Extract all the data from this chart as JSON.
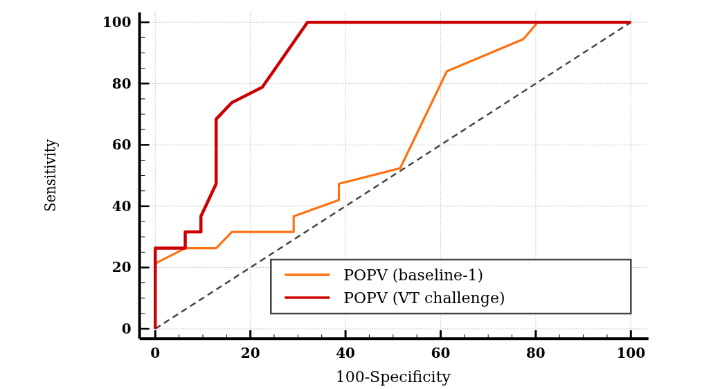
{
  "chart_data": {
    "type": "line",
    "xlabel": "100-Specificity",
    "ylabel": "Sensitivity",
    "xlim": [
      -3.3,
      103.7
    ],
    "ylim": [
      -3.2,
      103.2
    ],
    "xticks": [
      0,
      {
        "value": 5,
        "label": null
      },
      {
        "value": 10,
        "label": null
      },
      {
        "value": 15,
        "label": null
      },
      20,
      {
        "value": 25,
        "label": null
      },
      {
        "value": 30,
        "label": null
      },
      {
        "value": 35,
        "label": null
      },
      40,
      {
        "value": 45,
        "label": null
      },
      {
        "value": 50,
        "label": null
      },
      {
        "value": 55,
        "label": null
      },
      60,
      {
        "value": 65,
        "label": null
      },
      {
        "value": 70,
        "label": null
      },
      {
        "value": 75,
        "label": null
      },
      80,
      {
        "value": 85,
        "label": null
      },
      {
        "value": 90,
        "label": null
      },
      {
        "value": 95,
        "label": null
      },
      100
    ],
    "yticks": [
      0,
      {
        "value": 5,
        "label": null
      },
      {
        "value": 10,
        "label": null
      },
      {
        "value": 15,
        "label": null
      },
      20,
      {
        "value": 25,
        "label": null
      },
      {
        "value": 30,
        "label": null
      },
      {
        "value": 35,
        "label": null
      },
      40,
      {
        "value": 45,
        "label": null
      },
      {
        "value": 50,
        "label": null
      },
      {
        "value": 55,
        "label": null
      },
      60,
      {
        "value": 65,
        "label": null
      },
      {
        "value": 70,
        "label": null
      },
      {
        "value": 75,
        "label": null
      },
      80,
      {
        "value": 85,
        "label": null
      },
      {
        "value": 90,
        "label": null
      },
      {
        "value": 95,
        "label": null
      },
      100
    ],
    "grid": true,
    "legend": "bottom right",
    "marker": "none",
    "series": [
      {
        "color": "#444444",
        "line_style": "dashed",
        "x": [
          0,
          100
        ],
        "values": [
          0,
          100
        ]
      },
      {
        "name": "POPV (baseline-1)",
        "color": "#ff7010",
        "line_style": "solid",
        "x": [
          0,
          6.3,
          12.8,
          16.1,
          29.1,
          29.1,
          38.6,
          38.6,
          51.5,
          61.3,
          77.4,
          80.4,
          100
        ],
        "values": [
          21.3,
          26.3,
          26.3,
          31.6,
          31.6,
          36.7,
          42.0,
          47.3,
          52.4,
          84.0,
          94.5,
          100,
          100
        ]
      },
      {
        "name": "POPV (VT challenge)",
        "color": "#cc0000",
        "line_style": "solid",
        "x": [
          0,
          0,
          6.3,
          6.3,
          9.6,
          9.6,
          12.8,
          12.8,
          16.1,
          22.5,
          32.0,
          100
        ],
        "values": [
          0,
          26.3,
          26.3,
          31.6,
          31.6,
          36.7,
          47.3,
          68.4,
          73.8,
          78.8,
          100,
          100
        ]
      }
    ]
  }
}
